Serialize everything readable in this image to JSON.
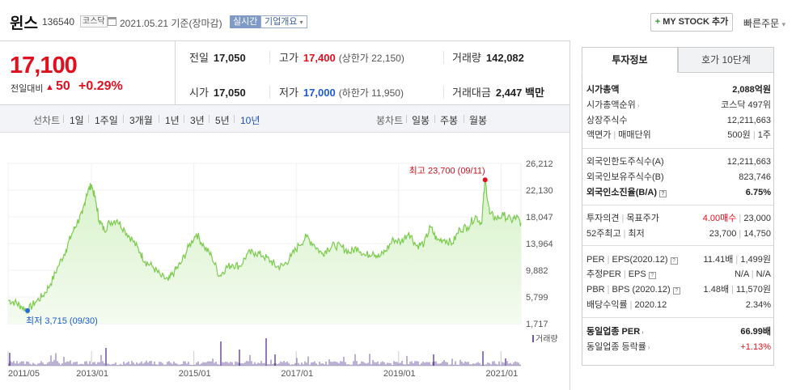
{
  "header": {
    "name": "윈스",
    "code": "136540",
    "market": "코스닥",
    "base_date": "2021.05.21  기준(장마감)",
    "realtime": "실시간",
    "overview": "기업개요",
    "mystock": "MY STOCK 추가",
    "quick_order": "빠른주문"
  },
  "price": {
    "current": "17,100",
    "change_label": "전일대비",
    "change_value": "50",
    "change_rate": "+0.29%"
  },
  "quotes": {
    "prev_label": "전일",
    "prev": "17,050",
    "high_label": "고가",
    "high": "17,400",
    "upper_limit": "(상한가 22,150)",
    "volume_label": "거래량",
    "volume": "142,082",
    "open_label": "시가",
    "open": "17,050",
    "low_label": "저가",
    "low": "17,000",
    "lower_limit": "(하한가 11,950)",
    "amount_label": "거래대금",
    "amount": "2,447 백만"
  },
  "periods": {
    "line_title": "선차트",
    "line": [
      "1일",
      "1주일",
      "3개월",
      "1년",
      "3년",
      "5년",
      "10년"
    ],
    "active": "10년",
    "candle_title": "봉차트",
    "candle": [
      "일봉",
      "주봉",
      "월봉"
    ]
  },
  "chart_data": {
    "type": "area",
    "y_ticks": [
      "26,212",
      "22,130",
      "18,047",
      "13,964",
      "9,882",
      "5,799",
      "1,717"
    ],
    "ylim": [
      1717,
      26212
    ],
    "x_ticks": [
      "2011/05",
      "2013/01",
      "2015/01",
      "2017/01",
      "2019/01",
      "2021/01"
    ],
    "x_tick_years": [
      2011.37,
      2013.0,
      2015.0,
      2017.0,
      2019.0,
      2021.0
    ],
    "xlim": [
      2011.37,
      2021.39
    ],
    "max_annotation": "최고 23,700 (09/11)",
    "min_annotation": "최저 3,715 (09/30)",
    "max_point": {
      "x": 2020.69,
      "y": 23700
    },
    "min_point": {
      "x": 2011.75,
      "y": 3715
    },
    "volume_label": "거래량",
    "series": [
      {
        "x": [
          2011.37,
          2011.5,
          2011.62,
          2011.75,
          2011.9,
          2012.05,
          2012.2,
          2012.35,
          2012.5,
          2012.62,
          2012.72,
          2012.82,
          2012.9,
          2013.0,
          2013.08,
          2013.15,
          2013.25,
          2013.35,
          2013.5,
          2013.65,
          2013.8,
          2013.95,
          2014.05,
          2014.2,
          2014.35,
          2014.5,
          2014.62,
          2014.75,
          2014.9,
          2015.05,
          2015.2,
          2015.35,
          2015.5,
          2015.62,
          2015.75,
          2015.9,
          2016.05,
          2016.2,
          2016.35,
          2016.5,
          2016.62,
          2016.75,
          2016.9,
          2017.05,
          2017.2,
          2017.35,
          2017.5,
          2017.62,
          2017.75,
          2017.9,
          2018.05,
          2018.2,
          2018.35,
          2018.5,
          2018.62,
          2018.75,
          2018.9,
          2019.05,
          2019.2,
          2019.35,
          2019.5,
          2019.62,
          2019.75,
          2019.9,
          2020.05,
          2020.2,
          2020.35,
          2020.5,
          2020.62,
          2020.69,
          2020.78,
          2020.9,
          2021.05,
          2021.2,
          2021.3,
          2021.39
        ],
        "y": [
          5300,
          5000,
          4400,
          3715,
          5000,
          6000,
          7800,
          10500,
          13000,
          15500,
          17200,
          18500,
          21500,
          23000,
          20500,
          17500,
          16000,
          17200,
          17600,
          16000,
          14500,
          12600,
          11200,
          10400,
          9000,
          8300,
          9700,
          11000,
          13500,
          15500,
          13500,
          12000,
          9000,
          10200,
          10800,
          10500,
          12400,
          12600,
          12100,
          11300,
          10400,
          10600,
          12000,
          13700,
          15000,
          13800,
          12400,
          13200,
          13700,
          13400,
          12600,
          13400,
          12100,
          12700,
          11900,
          12900,
          14600,
          14200,
          15700,
          13600,
          14000,
          16500,
          14500,
          14600,
          14000,
          16200,
          16500,
          18200,
          17000,
          23700,
          18500,
          17800,
          18300,
          17500,
          18000,
          17100
        ]
      }
    ]
  },
  "right": {
    "tab_info": "투자정보",
    "tab_quote": "호가 10단계",
    "rows": [
      {
        "l": "시가총액",
        "r": "2,088억원",
        "bold": true
      },
      {
        "l": "시가총액순위",
        "r": "코스닥 497위"
      },
      {
        "l": "상장주식수",
        "r": "12,211,663"
      },
      {
        "l": "액면가",
        "l2": "매매단위",
        "r": "500원",
        "r2": "1주"
      },
      {
        "l": "외국인한도주식수(A)",
        "r": "12,211,663"
      },
      {
        "l": "외국인보유주식수(B)",
        "r": "823,746"
      },
      {
        "l": "외국인소진율(B/A)",
        "r": "6.75%",
        "bold": true
      },
      {
        "l": "투자의견",
        "l2": "목표주가",
        "r_red": "4.00매수",
        "r2": "23,000"
      },
      {
        "l": "52주최고",
        "l2": "최저",
        "r": "23,700",
        "r2": "14,750"
      },
      {
        "l": "PER",
        "l2": "EPS(2020.12)",
        "r": "11.41배",
        "r2": "1,499원"
      },
      {
        "l": "추정PER",
        "l2": "EPS",
        "r": "N/A",
        "r2": "N/A"
      },
      {
        "l": "PBR",
        "l2": "BPS (2020.12)",
        "r": "1.48배",
        "r2": "11,570원"
      },
      {
        "l": "배당수익률",
        "l2": "2020.12",
        "r": "2.34%"
      },
      {
        "l": "동일업종 PER",
        "r": "66.99배",
        "bold": true
      },
      {
        "l": "동일업종 등락률",
        "r_red": "+1.13%"
      }
    ]
  }
}
